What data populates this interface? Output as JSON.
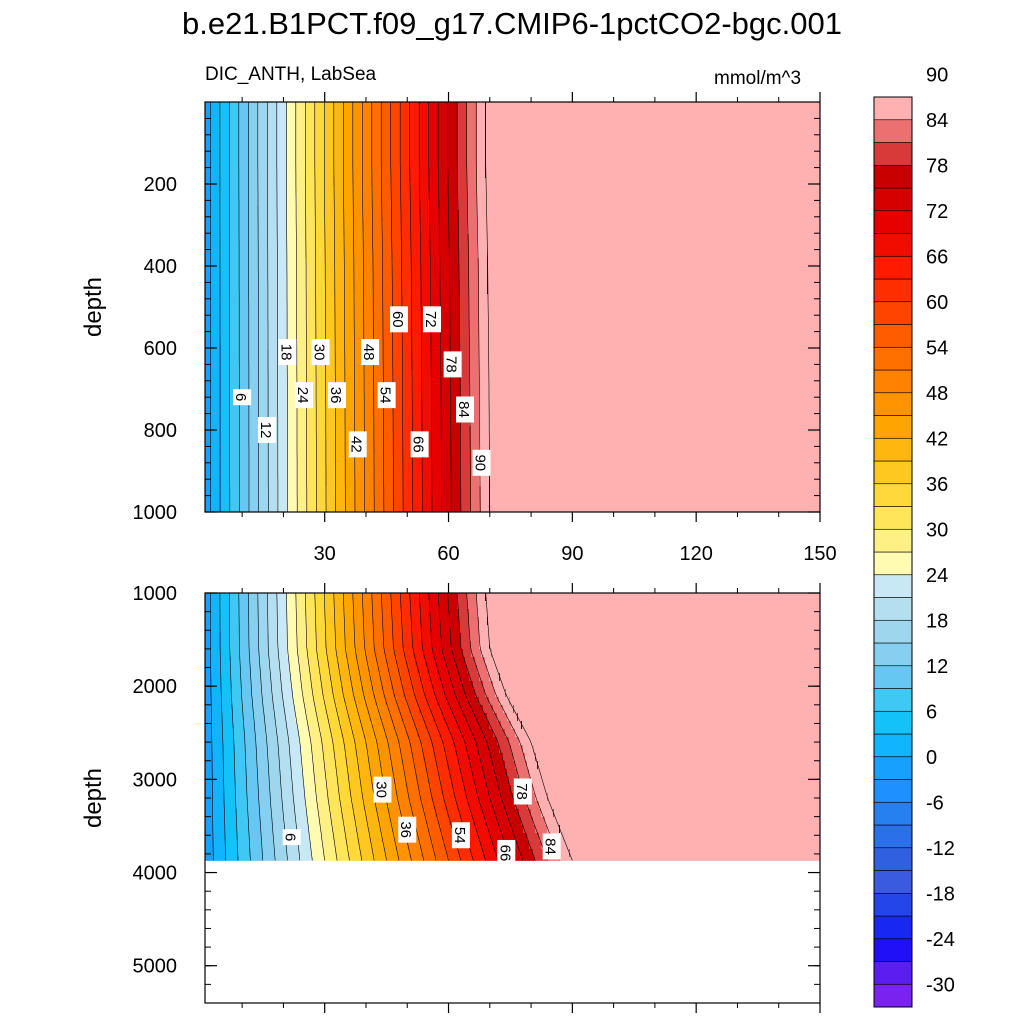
{
  "header": {
    "title": "b.e21.B1PCT.f09_g17.CMIP6-1pctCO2-bgc.001",
    "variable_region": "DIC_ANTH, LabSea",
    "units": "mmol/m^3"
  },
  "colors": {
    "saturated": "#ffb0b0",
    "contour_line": "#000000"
  },
  "chart_data": [
    {
      "type": "heatmap",
      "panel": "upper",
      "ylabel": "depth",
      "xlabel": "",
      "xlim": [
        1,
        150
      ],
      "ylim": [
        1000,
        0
      ],
      "x_ticks": [
        "30",
        "60",
        "90",
        "120",
        "150"
      ],
      "y_ticks": [
        "200",
        "400",
        "600",
        "800",
        "1000"
      ],
      "x_tick_values": [
        30,
        60,
        90,
        120,
        150
      ],
      "y_tick_values": [
        200,
        400,
        600,
        800,
        1000
      ],
      "saturation_x_at_depth": [
        [
          0,
          69
        ],
        [
          150,
          69
        ],
        [
          400,
          69.5
        ],
        [
          700,
          69.8
        ],
        [
          1000,
          70
        ]
      ],
      "contour_labels": [
        {
          "text": "6",
          "x": 10,
          "y": 720
        },
        {
          "text": "12",
          "x": 16,
          "y": 800
        },
        {
          "text": "18",
          "x": 21,
          "y": 610
        },
        {
          "text": "24",
          "x": 25,
          "y": 715
        },
        {
          "text": "30",
          "x": 29,
          "y": 610
        },
        {
          "text": "36",
          "x": 33,
          "y": 715
        },
        {
          "text": "42",
          "x": 38,
          "y": 835
        },
        {
          "text": "48",
          "x": 41,
          "y": 610
        },
        {
          "text": "54",
          "x": 45,
          "y": 715
        },
        {
          "text": "60",
          "x": 48,
          "y": 530
        },
        {
          "text": "66",
          "x": 53,
          "y": 835
        },
        {
          "text": "72",
          "x": 56,
          "y": 530
        },
        {
          "text": "78",
          "x": 61,
          "y": 640
        },
        {
          "text": "84",
          "x": 64,
          "y": 750
        },
        {
          "text": "90",
          "x": 68,
          "y": 880
        }
      ]
    },
    {
      "type": "heatmap",
      "panel": "lower",
      "ylabel": "depth",
      "xlabel": "",
      "xlim": [
        1,
        150
      ],
      "ylim": [
        5400,
        1000
      ],
      "data_bottom_depth": 3870,
      "y_ticks": [
        "1000",
        "2000",
        "3000",
        "4000",
        "5000"
      ],
      "y_tick_values": [
        1000,
        2000,
        3000,
        4000,
        5000
      ],
      "x_tick_values": [
        30,
        60,
        90,
        120,
        150
      ],
      "saturation_x_at_depth": [
        [
          1000,
          69
        ],
        [
          1600,
          70
        ],
        [
          2100,
          74
        ],
        [
          2600,
          80
        ],
        [
          3200,
          84
        ],
        [
          3870,
          90
        ]
      ],
      "contour_labels": [
        {
          "text": "6",
          "x": 22,
          "y": 3620
        },
        {
          "text": "30",
          "x": 44,
          "y": 3110
        },
        {
          "text": "36",
          "x": 50,
          "y": 3540
        },
        {
          "text": "54",
          "x": 63,
          "y": 3600
        },
        {
          "text": "78",
          "x": 78,
          "y": 3130
        },
        {
          "text": "66",
          "x": 74,
          "y": 3790
        },
        {
          "text": "84",
          "x": 85,
          "y": 3720
        }
      ]
    }
  ],
  "colorbar": {
    "levels": [
      -30,
      -27,
      -24,
      -21,
      -18,
      -15,
      -12,
      -9,
      -6,
      -3,
      0,
      3,
      6,
      9,
      12,
      15,
      18,
      21,
      24,
      27,
      30,
      33,
      36,
      39,
      42,
      45,
      48,
      51,
      54,
      57,
      60,
      63,
      66,
      69,
      72,
      75,
      78,
      81,
      84,
      87,
      90,
      93
    ],
    "colors": [
      "#7a22f0",
      "#5a1ef0",
      "#2010f5",
      "#1828f0",
      "#2446e8",
      "#3a5ae0",
      "#3060e0",
      "#2a70e8",
      "#2680f0",
      "#1e90ff",
      "#18a0ff",
      "#10b4ff",
      "#12c2f8",
      "#40c8f4",
      "#66c8f2",
      "#86cff0",
      "#9ed6ee",
      "#b4dff0",
      "#c8e8f6",
      "#fffbb0",
      "#fff085",
      "#ffe55a",
      "#ffd83a",
      "#ffc820",
      "#ffb710",
      "#ffa400",
      "#ff9400",
      "#ff8200",
      "#ff7000",
      "#ff5c00",
      "#ff4400",
      "#ff2e00",
      "#ff1a00",
      "#f20c00",
      "#e60000",
      "#d60000",
      "#c80000",
      "#d83a3a",
      "#ec7070",
      "#ffb0b0"
    ],
    "labels": [
      "90",
      "84",
      "78",
      "72",
      "66",
      "60",
      "54",
      "48",
      "42",
      "36",
      "30",
      "24",
      "18",
      "12",
      "6",
      "0",
      "-6",
      "-12",
      "-18",
      "-24",
      "-30"
    ]
  }
}
